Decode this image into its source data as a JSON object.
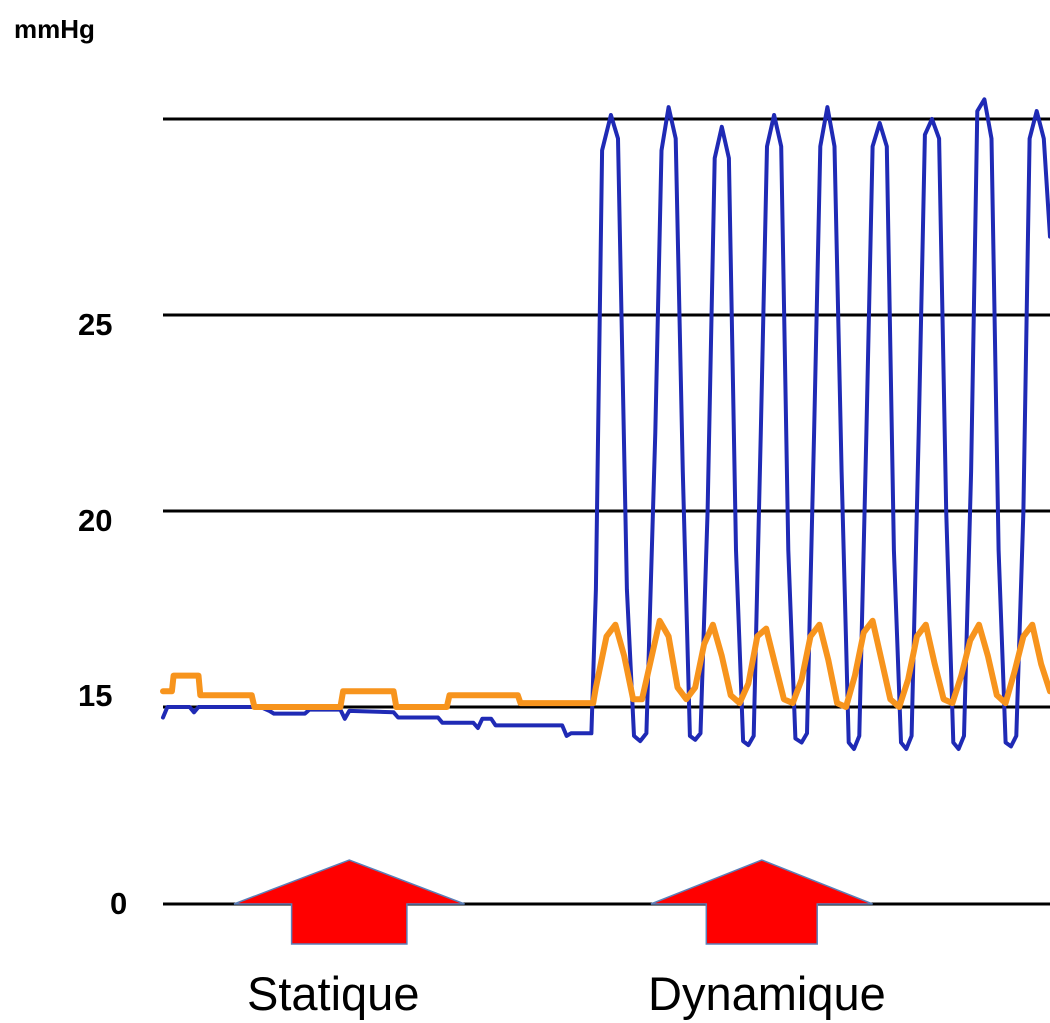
{
  "chart_data": {
    "type": "line",
    "title": "",
    "xlabel": "",
    "ylabel": "mmHg",
    "y_tick_labels": [
      "0",
      "15",
      "20",
      "25"
    ],
    "y_gridlines": [
      0,
      15,
      20,
      25,
      30
    ],
    "ylim": [
      0,
      32
    ],
    "x_domain": [
      0,
      100
    ],
    "grid": "horizontal",
    "legend": "none",
    "phase_labels": [
      {
        "label": "Statique",
        "x_start": 8,
        "x_end": 34,
        "arrow_color": "#ff0000"
      },
      {
        "label": "Dynamique",
        "x_start": 55,
        "x_end": 80,
        "arrow_color": "#ff0000"
      }
    ],
    "series": [
      {
        "color": "#1f2ab5",
        "points": [
          [
            0,
            14.2
          ],
          [
            0.5,
            15.0
          ],
          [
            3,
            15.0
          ],
          [
            3.5,
            14.6
          ],
          [
            4,
            15.0
          ],
          [
            9,
            15.0
          ],
          [
            11,
            15.0
          ],
          [
            12,
            14.7
          ],
          [
            12.5,
            14.5
          ],
          [
            16,
            14.5
          ],
          [
            16.5,
            14.8
          ],
          [
            20,
            14.8
          ],
          [
            20.5,
            14.1
          ],
          [
            21,
            14.7
          ],
          [
            26,
            14.6
          ],
          [
            26.5,
            14.2
          ],
          [
            31,
            14.2
          ],
          [
            31.5,
            13.8
          ],
          [
            35,
            13.8
          ],
          [
            35.5,
            13.4
          ],
          [
            36,
            14.1
          ],
          [
            37,
            14.1
          ],
          [
            37.5,
            13.6
          ],
          [
            45,
            13.6
          ],
          [
            45.5,
            12.8
          ],
          [
            46,
            13.0
          ],
          [
            47,
            13.0
          ],
          [
            48.3,
            13.0
          ],
          [
            48.8,
            18
          ],
          [
            49.5,
            29.2
          ],
          [
            50.5,
            30.1
          ],
          [
            51.3,
            29.5
          ],
          [
            52.3,
            18
          ],
          [
            53.1,
            12.8
          ],
          [
            53.8,
            12.4
          ],
          [
            54.5,
            13
          ],
          [
            55.5,
            22
          ],
          [
            56.2,
            29.2
          ],
          [
            57.0,
            30.3
          ],
          [
            57.8,
            29.5
          ],
          [
            58.6,
            21
          ],
          [
            59.4,
            12.8
          ],
          [
            60.0,
            12.5
          ],
          [
            60.6,
            13
          ],
          [
            61.4,
            20
          ],
          [
            62.2,
            29.0
          ],
          [
            63.0,
            29.8
          ],
          [
            63.8,
            29.0
          ],
          [
            64.6,
            19
          ],
          [
            65.4,
            12.4
          ],
          [
            66.0,
            12.1
          ],
          [
            66.6,
            12.8
          ],
          [
            67.4,
            22
          ],
          [
            68.1,
            29.3
          ],
          [
            68.9,
            30.1
          ],
          [
            69.7,
            29.3
          ],
          [
            70.5,
            19
          ],
          [
            71.3,
            12.6
          ],
          [
            72.0,
            12.3
          ],
          [
            72.6,
            13
          ],
          [
            73.4,
            22
          ],
          [
            74.1,
            29.3
          ],
          [
            74.9,
            30.3
          ],
          [
            75.7,
            29.3
          ],
          [
            76.5,
            21
          ],
          [
            77.3,
            12.3
          ],
          [
            77.9,
            11.8
          ],
          [
            78.5,
            12.8
          ],
          [
            79.3,
            22
          ],
          [
            80.0,
            29.3
          ],
          [
            80.8,
            29.9
          ],
          [
            81.6,
            29.3
          ],
          [
            82.4,
            19
          ],
          [
            83.2,
            12.3
          ],
          [
            83.8,
            11.8
          ],
          [
            84.4,
            12.8
          ],
          [
            85.2,
            22
          ],
          [
            85.9,
            29.6
          ],
          [
            86.7,
            30.0
          ],
          [
            87.5,
            29.5
          ],
          [
            88.3,
            20
          ],
          [
            89.1,
            12.3
          ],
          [
            89.7,
            11.8
          ],
          [
            90.3,
            12.8
          ],
          [
            91.1,
            21
          ],
          [
            91.8,
            30.2
          ],
          [
            92.6,
            30.5
          ],
          [
            93.4,
            29.5
          ],
          [
            94.2,
            19
          ],
          [
            95.0,
            12.3
          ],
          [
            95.6,
            12.0
          ],
          [
            96.2,
            12.8
          ],
          [
            97.0,
            20
          ],
          [
            97.7,
            29.5
          ],
          [
            98.5,
            30.2
          ],
          [
            99.3,
            29.5
          ],
          [
            100,
            27
          ]
        ]
      },
      {
        "color": "#f7941d",
        "points": [
          [
            0,
            15.4
          ],
          [
            1,
            15.4
          ],
          [
            1.2,
            15.8
          ],
          [
            4,
            15.8
          ],
          [
            4.2,
            15.3
          ],
          [
            10,
            15.3
          ],
          [
            10.3,
            15.0
          ],
          [
            20,
            15.0
          ],
          [
            20.3,
            15.4
          ],
          [
            26,
            15.4
          ],
          [
            26.3,
            15.0
          ],
          [
            32,
            15.0
          ],
          [
            32.3,
            15.3
          ],
          [
            40,
            15.3
          ],
          [
            40.3,
            15.1
          ],
          [
            48.5,
            15.1
          ],
          [
            48.8,
            15.5
          ],
          [
            50,
            16.8
          ],
          [
            51,
            17.1
          ],
          [
            52,
            16.3
          ],
          [
            53,
            15.2
          ],
          [
            54,
            15.2
          ],
          [
            55,
            16.2
          ],
          [
            56,
            17.2
          ],
          [
            57,
            16.8
          ],
          [
            58,
            15.5
          ],
          [
            59,
            15.2
          ],
          [
            60,
            15.5
          ],
          [
            61,
            16.6
          ],
          [
            62,
            17.1
          ],
          [
            63,
            16.3
          ],
          [
            64,
            15.3
          ],
          [
            65,
            15.1
          ],
          [
            66,
            15.6
          ],
          [
            67,
            16.8
          ],
          [
            68,
            17.0
          ],
          [
            69,
            16.1
          ],
          [
            70,
            15.2
          ],
          [
            71,
            15.1
          ],
          [
            72,
            15.7
          ],
          [
            73,
            16.8
          ],
          [
            74,
            17.1
          ],
          [
            75,
            16.2
          ],
          [
            76,
            15.1
          ],
          [
            77,
            15.0
          ],
          [
            78,
            15.8
          ],
          [
            79,
            16.9
          ],
          [
            80,
            17.2
          ],
          [
            81,
            16.2
          ],
          [
            82,
            15.2
          ],
          [
            83,
            15.0
          ],
          [
            84,
            15.7
          ],
          [
            85,
            16.8
          ],
          [
            86,
            17.1
          ],
          [
            87,
            16.1
          ],
          [
            88,
            15.2
          ],
          [
            89,
            15.1
          ],
          [
            90,
            15.8
          ],
          [
            91,
            16.7
          ],
          [
            92,
            17.1
          ],
          [
            93,
            16.3
          ],
          [
            94,
            15.3
          ],
          [
            95,
            15.1
          ],
          [
            96,
            15.9
          ],
          [
            97,
            16.8
          ],
          [
            98,
            17.1
          ],
          [
            99,
            16.1
          ],
          [
            100,
            15.4
          ]
        ]
      }
    ]
  }
}
